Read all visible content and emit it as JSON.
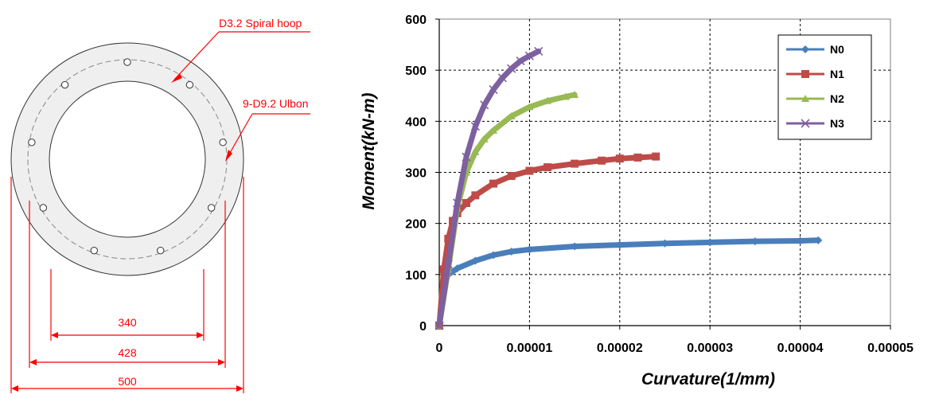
{
  "section": {
    "spiral_label": "D3.2 Spiral hoop",
    "rebar_label": "9-D9.2 Ulbon",
    "dims": [
      "340",
      "428",
      "500"
    ],
    "colors": {
      "annotation": "#ff0000",
      "concrete": "#efefef"
    }
  },
  "chart_data": {
    "type": "line",
    "xlabel": "Curvature(1/mm)",
    "ylabel": "Moment(kN-m)",
    "xlim": [
      0,
      5e-05
    ],
    "ylim": [
      0,
      600
    ],
    "xticks": [
      0,
      1e-05,
      2e-05,
      3e-05,
      4e-05,
      5e-05
    ],
    "xtick_labels": [
      "0",
      "0.00001",
      "0.00002",
      "0.00003",
      "0.00004",
      "0.00005"
    ],
    "yticks": [
      0,
      100,
      200,
      300,
      400,
      500,
      600
    ],
    "ytick_labels": [
      "0",
      "100",
      "200",
      "300",
      "400",
      "500",
      "600"
    ],
    "grid": "dashed",
    "legend_position": "top-right",
    "series": [
      {
        "name": "N0",
        "color": "#4a7ebb",
        "marker": "diamond",
        "x": [
          0,
          5e-07,
          1e-06,
          2e-06,
          4e-06,
          6e-06,
          8e-06,
          1e-05,
          1.5e-05,
          2e-05,
          2.5e-05,
          3e-05,
          3.5e-05,
          4e-05,
          4.2e-05
        ],
        "y": [
          0,
          80,
          100,
          112,
          127,
          138,
          145,
          149,
          155,
          158,
          161,
          163,
          165,
          166,
          167
        ]
      },
      {
        "name": "N1",
        "color": "#be4b48",
        "marker": "square",
        "x": [
          0,
          5e-07,
          1e-06,
          1.5e-06,
          2e-06,
          3e-06,
          4e-06,
          6e-06,
          8e-06,
          1e-05,
          1.2e-05,
          1.5e-05,
          1.8e-05,
          2e-05,
          2.2e-05,
          2.4e-05
        ],
        "y": [
          0,
          110,
          170,
          205,
          220,
          240,
          255,
          278,
          293,
          303,
          310,
          317,
          323,
          327,
          329,
          331
        ]
      },
      {
        "name": "N2",
        "color": "#98b954",
        "marker": "triangle",
        "x": [
          0,
          1e-06,
          2e-06,
          3e-06,
          4e-06,
          5e-06,
          6e-06,
          8e-06,
          1e-05,
          1.2e-05,
          1.4e-05,
          1.5e-05
        ],
        "y": [
          0,
          110,
          230,
          300,
          340,
          365,
          382,
          410,
          428,
          440,
          448,
          452
        ]
      },
      {
        "name": "N3",
        "color": "#7d60a0",
        "marker": "x",
        "x": [
          0,
          1e-06,
          2e-06,
          3e-06,
          4e-06,
          5e-06,
          6e-06,
          7e-06,
          8e-06,
          9e-06,
          1e-05,
          1.1e-05
        ],
        "y": [
          0,
          120,
          240,
          330,
          390,
          432,
          462,
          485,
          503,
          518,
          528,
          537
        ]
      }
    ]
  }
}
